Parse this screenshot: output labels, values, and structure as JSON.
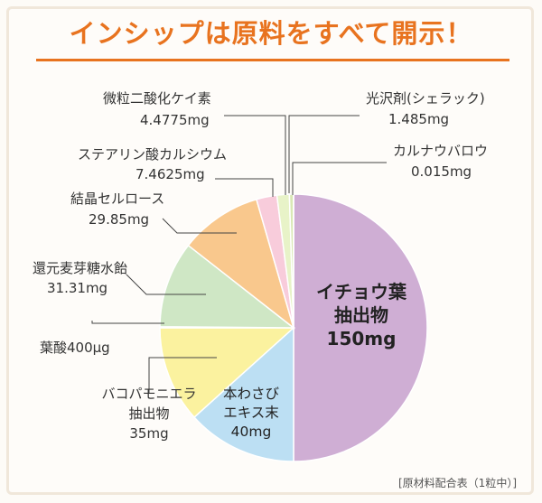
{
  "title": "インシップは原料をすべて開示！",
  "footnote": "[原材料配合表（1粒中）]",
  "chart_data": {
    "type": "pie",
    "title": "インシップは原料をすべて開示！",
    "unit": "mg",
    "slices": [
      {
        "name": "イチョウ葉抽出物",
        "value": 150,
        "amount": "150mg",
        "color": "#cfaed4"
      },
      {
        "name": "本わさびエキス末",
        "value": 40,
        "amount": "40mg",
        "color": "#bcdff3"
      },
      {
        "name": "バコパモニエラ抽出物",
        "value": 35,
        "amount": "35mg",
        "color": "#fbf29f"
      },
      {
        "name": "葉酸",
        "value": 0.4,
        "amount": "400μg",
        "color": "#cfe7c5"
      },
      {
        "name": "還元麦芽糖水飴",
        "value": 31.31,
        "amount": "31.31mg",
        "color": "#cfe7c5"
      },
      {
        "name": "結晶セルロース",
        "value": 29.85,
        "amount": "29.85mg",
        "color": "#f9c88d"
      },
      {
        "name": "ステアリン酸カルシウム",
        "value": 7.4625,
        "amount": "7.4625mg",
        "color": "#f8ccdb"
      },
      {
        "name": "微粒二酸化ケイ素",
        "value": 4.4775,
        "amount": "4.4775mg",
        "color": "#e8f3c8"
      },
      {
        "name": "光沢剤(シェラック)",
        "value": 1.485,
        "amount": "1.485mg",
        "color": "#d9e8b5"
      },
      {
        "name": "カルナウバロウ",
        "value": 0.015,
        "amount": "0.015mg",
        "color": "#b8202e"
      }
    ]
  },
  "labels": {
    "ginkgo_l1": "イチョウ葉",
    "ginkgo_l2": "抽出物",
    "ginkgo_l3": "150mg",
    "wasabi_l1": "本わさび",
    "wasabi_l2": "エキス末",
    "wasabi_l3": "40mg",
    "bacopa_l1": "バコパモニエラ",
    "bacopa_l2": "抽出物",
    "bacopa_l3": "35mg",
    "folic": "葉酸400μg",
    "maltitol_l1": "還元麦芽糖水飴",
    "maltitol_l2": "31.31mg",
    "cellulose_l1": "結晶セルロース",
    "cellulose_l2": "29.85mg",
    "stearate_l1": "ステアリン酸カルシウム",
    "stearate_l2": "7.4625mg",
    "silica_l1": "微粒二酸化ケイ素",
    "silica_l2": "4.4775mg",
    "shellac_l1": "光沢剤(シェラック)",
    "shellac_l2": "1.485mg",
    "carnauba_l1": "カルナウバロウ",
    "carnauba_l2": "0.015mg"
  }
}
